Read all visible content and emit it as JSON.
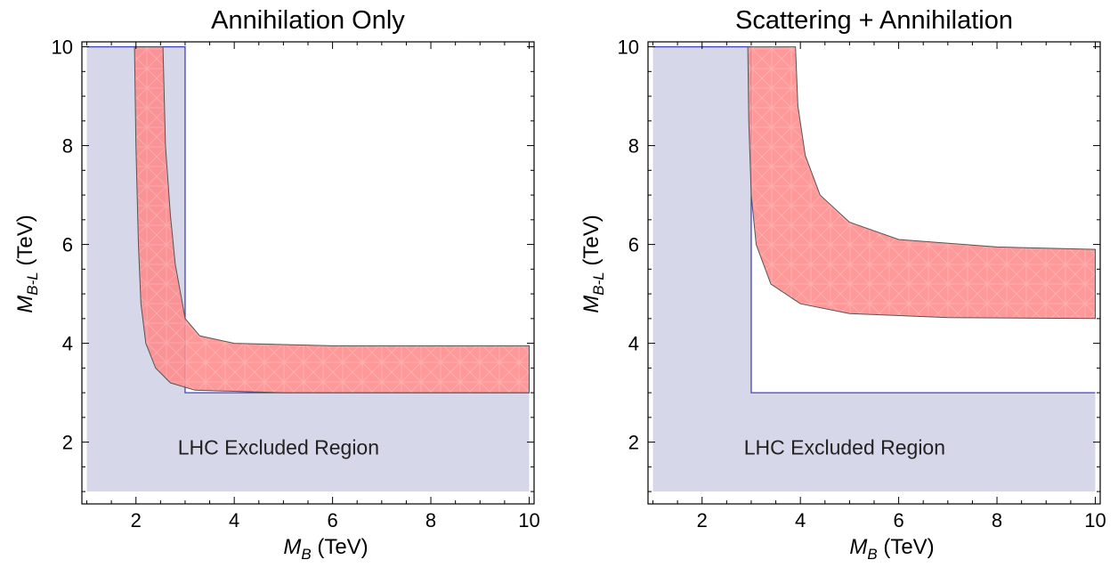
{
  "charts": [
    {
      "title": "Annihilation Only",
      "xlabel_main": "M",
      "xlabel_sub": "B",
      "xlabel_unit": " (TeV)",
      "ylabel_main": "M",
      "ylabel_sub": "B-L",
      "ylabel_unit": " (TeV)",
      "annotation": "LHC Excluded Region"
    },
    {
      "title": "Scattering + Annihilation",
      "xlabel_main": "M",
      "xlabel_sub": "B",
      "xlabel_unit": " (TeV)",
      "ylabel_main": "M",
      "ylabel_sub": "B-L",
      "ylabel_unit": " (TeV)",
      "annotation": "LHC Excluded Region"
    }
  ],
  "chart_data": [
    {
      "type": "area",
      "title": "Annihilation Only",
      "xlabel": "M_B (TeV)",
      "ylabel": "M_B-L (TeV)",
      "xlim": [
        0.9,
        10.1
      ],
      "ylim": [
        0.75,
        10.1
      ],
      "xticks": [
        2,
        4,
        6,
        8,
        10
      ],
      "yticks": [
        2,
        4,
        6,
        8,
        10
      ],
      "grid": false,
      "excluded_region": {
        "label": "LHC Excluded Region",
        "color": "#d7d7ea",
        "edge_color": "#4444bb",
        "points": [
          [
            1,
            1
          ],
          [
            10,
            1
          ],
          [
            10,
            3
          ],
          [
            3,
            3
          ],
          [
            3,
            10
          ],
          [
            1,
            10
          ]
        ]
      },
      "allowed_band": {
        "color": "#ff8a8a",
        "upper_curve": [
          [
            2.55,
            10
          ],
          [
            2.6,
            8.0
          ],
          [
            2.7,
            6.6
          ],
          [
            2.8,
            5.6
          ],
          [
            3.0,
            4.5
          ],
          [
            3.3,
            4.15
          ],
          [
            4,
            4.0
          ],
          [
            6,
            3.95
          ],
          [
            10,
            3.95
          ]
        ],
        "lower_curve": [
          [
            1.97,
            10
          ],
          [
            2.0,
            8.0
          ],
          [
            2.05,
            6.0
          ],
          [
            2.1,
            4.8
          ],
          [
            2.2,
            4.0
          ],
          [
            2.4,
            3.5
          ],
          [
            2.7,
            3.2
          ],
          [
            3.2,
            3.05
          ],
          [
            5,
            3.0
          ],
          [
            10,
            3.0
          ]
        ]
      }
    },
    {
      "type": "area",
      "title": "Scattering + Annihilation",
      "xlabel": "M_B (TeV)",
      "ylabel": "M_B-L (TeV)",
      "xlim": [
        0.9,
        10.1
      ],
      "ylim": [
        0.75,
        10.1
      ],
      "xticks": [
        2,
        4,
        6,
        8,
        10
      ],
      "yticks": [
        2,
        4,
        6,
        8,
        10
      ],
      "grid": false,
      "excluded_region": {
        "label": "LHC Excluded Region",
        "color": "#d7d7ea",
        "edge_color": "#4444bb",
        "points": [
          [
            1,
            1
          ],
          [
            10,
            1
          ],
          [
            10,
            3
          ],
          [
            3,
            3
          ],
          [
            3,
            10
          ],
          [
            1,
            10
          ]
        ]
      },
      "allowed_band": {
        "color": "#ff8a8a",
        "upper_curve": [
          [
            3.9,
            10
          ],
          [
            3.95,
            8.8
          ],
          [
            4.1,
            7.8
          ],
          [
            4.4,
            7.0
          ],
          [
            5.0,
            6.45
          ],
          [
            6,
            6.1
          ],
          [
            8,
            5.95
          ],
          [
            10,
            5.9
          ]
        ],
        "lower_curve": [
          [
            2.93,
            10
          ],
          [
            2.95,
            8.5
          ],
          [
            3.0,
            7.0
          ],
          [
            3.1,
            6.0
          ],
          [
            3.4,
            5.2
          ],
          [
            4,
            4.8
          ],
          [
            5,
            4.6
          ],
          [
            7,
            4.52
          ],
          [
            10,
            4.5
          ]
        ]
      }
    }
  ]
}
